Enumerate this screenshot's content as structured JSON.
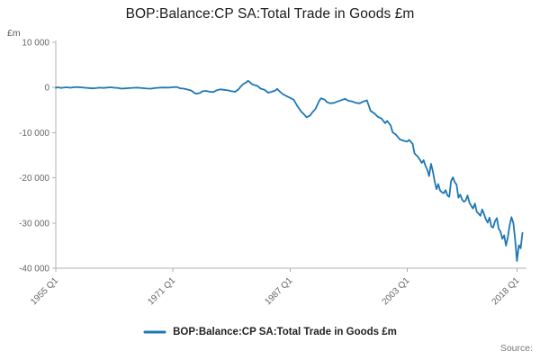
{
  "title": "BOP:Balance:CP SA:Total Trade in Goods £m",
  "y_axis_unit_label": "£m",
  "legend": {
    "label": "BOP:Balance:CP SA:Total Trade in Goods £m"
  },
  "source_label": "Source:",
  "colors": {
    "line": "#1f77b4",
    "axis": "#b0b0b0",
    "tick_text": "#666666",
    "title_text": "#1a1a1a"
  },
  "chart_data": {
    "type": "line",
    "title": "BOP:Balance:CP SA:Total Trade in Goods £m",
    "xlabel": "",
    "ylabel": "£m",
    "xlim": [
      1955,
      2019.3
    ],
    "ylim": [
      -40000,
      10000
    ],
    "grid": false,
    "legend_position": "bottom-center",
    "y_ticks": [
      10000,
      0,
      -10000,
      -20000,
      -30000,
      -40000
    ],
    "y_tick_labels": [
      "10 000",
      "0",
      "-10 000",
      "-20 000",
      "-30 000",
      "-40 000"
    ],
    "x_ticks": [
      1955,
      1971,
      1987,
      2003,
      2018
    ],
    "x_tick_labels": [
      "1955 Q1",
      "1971 Q1",
      "1987 Q1",
      "2003 Q1",
      "2018 Q1"
    ],
    "series": [
      {
        "name": "BOP:Balance:CP SA:Total Trade in Goods £m",
        "points": [
          [
            1955.0,
            -80
          ],
          [
            1955.25,
            40
          ],
          [
            1955.5,
            -30
          ],
          [
            1955.75,
            -100
          ],
          [
            1956.0,
            -40
          ],
          [
            1956.5,
            30
          ],
          [
            1957.0,
            -60
          ],
          [
            1957.5,
            50
          ],
          [
            1958.0,
            70
          ],
          [
            1958.5,
            20
          ],
          [
            1959.0,
            -50
          ],
          [
            1959.5,
            -110
          ],
          [
            1960.0,
            -190
          ],
          [
            1960.5,
            -130
          ],
          [
            1961.0,
            -40
          ],
          [
            1961.5,
            -90
          ],
          [
            1962.0,
            -20
          ],
          [
            1962.5,
            40
          ],
          [
            1963.0,
            -50
          ],
          [
            1963.5,
            -100
          ],
          [
            1964.0,
            -260
          ],
          [
            1964.5,
            -200
          ],
          [
            1965.0,
            -130
          ],
          [
            1965.5,
            -70
          ],
          [
            1966.0,
            -30
          ],
          [
            1966.5,
            -80
          ],
          [
            1967.0,
            -160
          ],
          [
            1967.5,
            -230
          ],
          [
            1968.0,
            -260
          ],
          [
            1968.5,
            -140
          ],
          [
            1969.0,
            -60
          ],
          [
            1969.5,
            -10
          ],
          [
            1970.0,
            -20
          ],
          [
            1970.5,
            -40
          ],
          [
            1971.0,
            60
          ],
          [
            1971.5,
            90
          ],
          [
            1972.0,
            -170
          ],
          [
            1972.5,
            -260
          ],
          [
            1973.0,
            -460
          ],
          [
            1973.5,
            -680
          ],
          [
            1974.0,
            -1280
          ],
          [
            1974.25,
            -1380
          ],
          [
            1974.75,
            -1180
          ],
          [
            1975.0,
            -860
          ],
          [
            1975.5,
            -760
          ],
          [
            1976.0,
            -940
          ],
          [
            1976.5,
            -1020
          ],
          [
            1977.0,
            -620
          ],
          [
            1977.5,
            -420
          ],
          [
            1978.0,
            -520
          ],
          [
            1978.5,
            -640
          ],
          [
            1979.0,
            -840
          ],
          [
            1979.5,
            -960
          ],
          [
            1980.0,
            -350
          ],
          [
            1980.25,
            200
          ],
          [
            1980.5,
            600
          ],
          [
            1980.75,
            900
          ],
          [
            1981.0,
            1100
          ],
          [
            1981.25,
            1500
          ],
          [
            1981.5,
            1200
          ],
          [
            1981.75,
            800
          ],
          [
            1982.0,
            600
          ],
          [
            1982.5,
            400
          ],
          [
            1983.0,
            -250
          ],
          [
            1983.5,
            -500
          ],
          [
            1984.0,
            -1150
          ],
          [
            1984.5,
            -950
          ],
          [
            1985.0,
            -650
          ],
          [
            1985.25,
            -300
          ],
          [
            1985.5,
            -750
          ],
          [
            1986.0,
            -1450
          ],
          [
            1986.5,
            -1900
          ],
          [
            1987.0,
            -2300
          ],
          [
            1987.5,
            -2700
          ],
          [
            1988.0,
            -4100
          ],
          [
            1988.5,
            -5300
          ],
          [
            1989.0,
            -6100
          ],
          [
            1989.25,
            -6600
          ],
          [
            1989.5,
            -6400
          ],
          [
            1989.75,
            -6200
          ],
          [
            1990.0,
            -5600
          ],
          [
            1990.5,
            -4700
          ],
          [
            1991.0,
            -2900
          ],
          [
            1991.25,
            -2400
          ],
          [
            1991.75,
            -2700
          ],
          [
            1992.0,
            -3200
          ],
          [
            1992.5,
            -3500
          ],
          [
            1993.0,
            -3400
          ],
          [
            1993.5,
            -3100
          ],
          [
            1994.0,
            -2800
          ],
          [
            1994.5,
            -2500
          ],
          [
            1995.0,
            -2950
          ],
          [
            1995.5,
            -3100
          ],
          [
            1996.0,
            -3400
          ],
          [
            1996.5,
            -3500
          ],
          [
            1997.0,
            -3100
          ],
          [
            1997.5,
            -2850
          ],
          [
            1998.0,
            -5200
          ],
          [
            1998.5,
            -5700
          ],
          [
            1999.0,
            -6500
          ],
          [
            1999.5,
            -6900
          ],
          [
            2000.0,
            -7900
          ],
          [
            2000.25,
            -7400
          ],
          [
            2000.75,
            -8400
          ],
          [
            2001.0,
            -9900
          ],
          [
            2001.5,
            -10500
          ],
          [
            2002.0,
            -11500
          ],
          [
            2002.5,
            -11800
          ],
          [
            2003.0,
            -12000
          ],
          [
            2003.25,
            -11600
          ],
          [
            2003.75,
            -12500
          ],
          [
            2004.0,
            -14600
          ],
          [
            2004.5,
            -15400
          ],
          [
            2005.0,
            -16700
          ],
          [
            2005.25,
            -16100
          ],
          [
            2005.5,
            -17400
          ],
          [
            2005.75,
            -18200
          ],
          [
            2006.0,
            -19600
          ],
          [
            2006.25,
            -16900
          ],
          [
            2006.5,
            -18500
          ],
          [
            2006.75,
            -20700
          ],
          [
            2007.0,
            -22500
          ],
          [
            2007.25,
            -21400
          ],
          [
            2007.5,
            -22800
          ],
          [
            2007.75,
            -23200
          ],
          [
            2008.0,
            -23400
          ],
          [
            2008.25,
            -22700
          ],
          [
            2008.5,
            -23900
          ],
          [
            2008.75,
            -24200
          ],
          [
            2009.0,
            -20700
          ],
          [
            2009.25,
            -19900
          ],
          [
            2009.5,
            -21000
          ],
          [
            2009.75,
            -21500
          ],
          [
            2010.0,
            -24400
          ],
          [
            2010.25,
            -23700
          ],
          [
            2010.5,
            -24800
          ],
          [
            2010.75,
            -25300
          ],
          [
            2011.0,
            -25000
          ],
          [
            2011.25,
            -23900
          ],
          [
            2011.5,
            -25500
          ],
          [
            2011.75,
            -26200
          ],
          [
            2012.0,
            -26800
          ],
          [
            2012.25,
            -25700
          ],
          [
            2012.5,
            -27500
          ],
          [
            2012.75,
            -27900
          ],
          [
            2013.0,
            -28400
          ],
          [
            2013.25,
            -27000
          ],
          [
            2013.5,
            -28000
          ],
          [
            2013.75,
            -29200
          ],
          [
            2014.0,
            -29900
          ],
          [
            2014.25,
            -28800
          ],
          [
            2014.5,
            -30800
          ],
          [
            2014.75,
            -31000
          ],
          [
            2015.0,
            -29600
          ],
          [
            2015.25,
            -28900
          ],
          [
            2015.5,
            -31300
          ],
          [
            2015.75,
            -31900
          ],
          [
            2016.0,
            -33500
          ],
          [
            2016.25,
            -32700
          ],
          [
            2016.5,
            -35000
          ],
          [
            2016.75,
            -33100
          ],
          [
            2017.0,
            -30500
          ],
          [
            2017.25,
            -28700
          ],
          [
            2017.5,
            -30000
          ],
          [
            2017.75,
            -33700
          ],
          [
            2018.0,
            -38400
          ],
          [
            2018.25,
            -34900
          ],
          [
            2018.5,
            -35600
          ],
          [
            2018.75,
            -32200
          ]
        ]
      }
    ]
  }
}
